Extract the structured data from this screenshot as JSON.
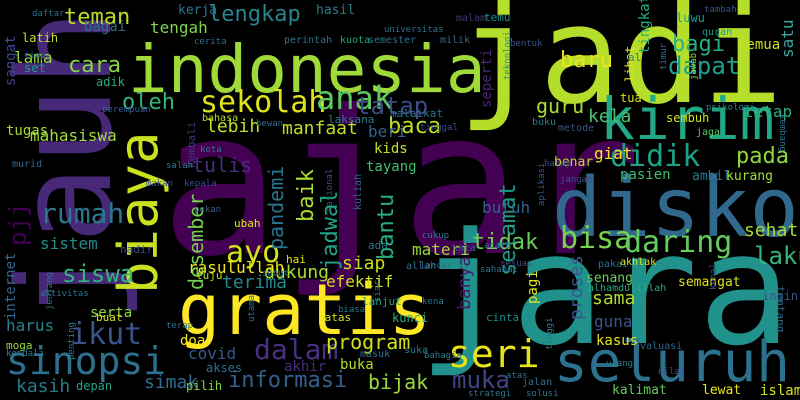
{
  "words": [
    {
      "text": "ajar",
      "color": "#440154"
    },
    {
      "text": "jarak",
      "color": "#21918c"
    },
    {
      "text": "jadi",
      "color": "#b5de2b"
    },
    {
      "text": "jauh",
      "color": "#482878"
    },
    {
      "text": "indonesia",
      "color": "#a0da39"
    },
    {
      "text": "diskon",
      "color": "#31688e"
    },
    {
      "text": "gratis",
      "color": "#fde725"
    },
    {
      "text": "kirim",
      "color": "#22a884"
    },
    {
      "text": "seluruh",
      "color": "#2c728e"
    },
    {
      "text": "biaya",
      "color": "#cae11f"
    },
    {
      "text": "sinopsi",
      "color": "#2d708e"
    },
    {
      "text": "sekolah",
      "color": "#dde318"
    },
    {
      "text": "anak",
      "color": "#5ec962"
    },
    {
      "text": "didik",
      "color": "#1fa187"
    },
    {
      "text": "seri",
      "color": "#e5e419"
    },
    {
      "text": "dalam",
      "color": "#46327e"
    },
    {
      "text": "informasi",
      "color": "#355f8d"
    },
    {
      "text": "ikut",
      "color": "#3b528b"
    },
    {
      "text": "ayo",
      "color": "#d8e219"
    },
    {
      "text": "tidak",
      "color": "#6ece58"
    },
    {
      "text": "bisa",
      "color": "#7ad151"
    },
    {
      "text": "daring",
      "color": "#65cb5e"
    },
    {
      "text": "rumah",
      "color": "#2a788e"
    },
    {
      "text": "lengkap",
      "color": "#25848e"
    },
    {
      "text": "baca",
      "color": "#c2df23"
    },
    {
      "text": "teman",
      "color": "#bade28"
    },
    {
      "text": "siswa",
      "color": "#32b67a"
    },
    {
      "text": "muka",
      "color": "#414487"
    },
    {
      "text": "bagi",
      "color": "#29af7f"
    },
    {
      "text": "dapat",
      "color": "#1f9e89"
    },
    {
      "text": "laku",
      "color": "#35b779"
    },
    {
      "text": "baru",
      "color": "#eae51a"
    },
    {
      "text": "oleh",
      "color": "#31b57b"
    },
    {
      "text": "cara",
      "color": "#86d549"
    },
    {
      "text": "guru",
      "color": "#aadc32"
    },
    {
      "text": "tatap",
      "color": "#3e4a89"
    },
    {
      "text": "pada",
      "color": "#92d742"
    },
    {
      "text": "program",
      "color": "#d2e21b"
    },
    {
      "text": "bijak",
      "color": "#9bd93c"
    },
    {
      "text": "selamat",
      "color": "#1e9b8a"
    },
    {
      "text": "bantu",
      "color": "#28ae80"
    },
    {
      "text": "jadwal",
      "color": "#20a486"
    },
    {
      "text": "desember",
      "color": "#75d054"
    },
    {
      "text": "baik",
      "color": "#a8db34"
    },
    {
      "text": "pandemi",
      "color": "#2b748e"
    },
    {
      "text": "terima",
      "color": "#24878e"
    },
    {
      "text": "dukung",
      "color": "#addc30"
    },
    {
      "text": "rasulullah",
      "color": "#f1e51d"
    },
    {
      "text": "manfaat",
      "color": "#c0df25"
    },
    {
      "text": "lebih",
      "color": "#bddf26"
    },
    {
      "text": "tulis",
      "color": "#472f7d"
    },
    {
      "text": "siap",
      "color": "#c8e020"
    },
    {
      "text": "simak",
      "color": "#2e6e8e"
    },
    {
      "text": "covid",
      "color": "#38598c"
    },
    {
      "text": "kasih",
      "color": "#287c8e"
    },
    {
      "text": "harus",
      "color": "#26828e"
    },
    {
      "text": "serta",
      "color": "#8ed645"
    },
    {
      "text": "lama",
      "color": "#93d741"
    },
    {
      "text": "bagai",
      "color": "#2e6f8e"
    },
    {
      "text": "tengah",
      "color": "#7fd34e"
    },
    {
      "text": "mahasiswa",
      "color": "#a2da37"
    },
    {
      "text": "sistem",
      "color": "#228c8d"
    },
    {
      "text": "pjj",
      "color": "#440154"
    },
    {
      "text": "sangat",
      "color": "#3f4788"
    },
    {
      "text": "internet",
      "color": "#31668e"
    },
    {
      "text": "efektif",
      "color": "#d0e11c"
    },
    {
      "text": "banyak",
      "color": "#481a6c"
    },
    {
      "text": "proses",
      "color": "#39558c"
    },
    {
      "text": "sama",
      "color": "#addc30"
    },
    {
      "text": "guna",
      "color": "#3b528b"
    },
    {
      "text": "kasus",
      "color": "#e2e418"
    },
    {
      "text": "sehat",
      "color": "#aadc32"
    },
    {
      "text": "tetap",
      "color": "#2db27d"
    },
    {
      "text": "satu",
      "color": "#3ba99f"
    },
    {
      "text": "semua",
      "color": "#cde11d"
    },
    {
      "text": "semangat",
      "color": "#dde318"
    },
    {
      "text": "butuh",
      "color": "#34618d"
    },
    {
      "text": "kela",
      "color": "#4ac16d"
    },
    {
      "text": "beri",
      "color": "#33638d"
    },
    {
      "text": "giat",
      "color": "#f8e621"
    },
    {
      "text": "materi",
      "color": "#9fda3a"
    },
    {
      "text": "kerja",
      "color": "#2a768e"
    },
    {
      "text": "hasil",
      "color": "#287d8e"
    },
    {
      "text": "tingkat",
      "color": "#26ad81"
    },
    {
      "text": "seperti",
      "color": "#482576"
    },
    {
      "text": "kids",
      "color": "#c5e021"
    },
    {
      "text": "tayang",
      "color": "#42be71"
    },
    {
      "text": "tugas",
      "color": "#a5db36"
    },
    {
      "text": "latih",
      "color": "#c2df23"
    },
    {
      "text": "buka",
      "color": "#b2dd2d"
    },
    {
      "text": "akhir",
      "color": "#472d7b"
    },
    {
      "text": "akses",
      "color": "#2d708e"
    },
    {
      "text": "pilih",
      "color": "#7fd34e"
    },
    {
      "text": "depan",
      "color": "#20a386"
    },
    {
      "text": "doa",
      "color": "#f4e61e"
    },
    {
      "text": "moga",
      "color": "#95d840"
    },
    {
      "text": "set",
      "color": "#1f9a8a"
    },
    {
      "text": "adik",
      "color": "#25ac82"
    },
    {
      "text": "kunci",
      "color": "#30b07e"
    },
    {
      "text": "senang",
      "color": "#6ccd5a"
    },
    {
      "text": "benar",
      "color": "#b8de29"
    },
    {
      "text": "pasien",
      "color": "#3fbc73"
    },
    {
      "text": "ambil",
      "color": "#2a788e"
    },
    {
      "text": "kurang",
      "color": "#a5db36"
    },
    {
      "text": "lewat",
      "color": "#e7e419"
    },
    {
      "text": "kalimat",
      "color": "#65cb5e"
    },
    {
      "text": "islam",
      "color": "#d5e21a"
    },
    {
      "text": "ingin",
      "color": "#3b528b"
    },
    {
      "text": "tentang",
      "color": "#2d708e"
    },
    {
      "text": "lihat",
      "color": "#e5e419"
    },
    {
      "text": "sembuh",
      "color": "#d2e21b"
    },
    {
      "text": "tua",
      "color": "#dde318"
    },
    {
      "text": "luwu",
      "color": "#1f998a"
    },
    {
      "text": "temu",
      "color": "#21918c"
    },
    {
      "text": "cinta",
      "color": "#23898e"
    },
    {
      "text": "lanjut",
      "color": "#20a386"
    },
    {
      "text": "hadir",
      "color": "#3b528b"
    },
    {
      "text": "kata",
      "color": "#355f8d"
    },
    {
      "text": "buat",
      "color": "#d0e11c"
    },
    {
      "text": "tuju",
      "color": "#b5de2b"
    },
    {
      "text": "hai",
      "color": "#e5e419"
    },
    {
      "text": "ubah",
      "color": "#e2e418"
    },
    {
      "text": "ada",
      "color": "#2a788e"
    },
    {
      "text": "batas",
      "color": "#d8e219"
    },
    {
      "text": "bahasa",
      "color": "#b2dd2d"
    },
    {
      "text": "laksana",
      "color": "#287c8e"
    },
    {
      "text": "malaikat",
      "color": "#2a768e"
    },
    {
      "text": "kuota",
      "color": "#1fa088"
    },
    {
      "text": "semester",
      "color": "#2d708e"
    },
    {
      "text": "milik",
      "color": "#31688e"
    },
    {
      "text": "perintah",
      "color": "#2c728e"
    },
    {
      "text": "universitas",
      "color": "#2c728e"
    },
    {
      "text": "malam",
      "color": "#46337f"
    },
    {
      "text": "quran",
      "color": "#1f958b"
    },
    {
      "text": "jawab",
      "color": "#95d840"
    },
    {
      "text": "tambah",
      "color": "#3b528b"
    },
    {
      "text": "al",
      "color": "#2a788e"
    },
    {
      "text": "cerita",
      "color": "#2c728e"
    },
    {
      "text": "tiap",
      "color": "#34618d"
    },
    {
      "text": "daftar",
      "color": "#2e6e8e"
    },
    {
      "text": "bentuk",
      "color": "#3b528b"
    },
    {
      "text": "teknologi",
      "color": "#1f968b"
    },
    {
      "text": "timur",
      "color": "#2c728e"
    },
    {
      "text": "jaga",
      "color": "#5ec962"
    },
    {
      "text": "psikologi",
      "color": "#23898e"
    },
    {
      "text": "kembang",
      "color": "#2a768e"
    },
    {
      "text": "metode",
      "color": "#3b528b"
    },
    {
      "text": "hewan",
      "color": "#2d708e"
    },
    {
      "text": "tinggal",
      "color": "#3b528b"
    },
    {
      "text": "perempuan",
      "color": "#355f8d"
    },
    {
      "text": "kembali",
      "color": "#46327e"
    },
    {
      "text": "buku",
      "color": "#2a788e"
    },
    {
      "text": "kota",
      "color": "#2a788e"
    },
    {
      "text": "murid",
      "color": "#32648e"
    },
    {
      "text": "kepala",
      "color": "#3e4a89"
    },
    {
      "text": "makan",
      "color": "#3b528b"
    },
    {
      "text": "pekan",
      "color": "#355f8d"
    },
    {
      "text": "salah",
      "color": "#2a788e"
    },
    {
      "text": "nasional",
      "color": "#3b528b"
    },
    {
      "text": "kuliah",
      "color": "#31688e"
    },
    {
      "text": "aplikasi",
      "color": "#3b528b"
    },
    {
      "text": "harap",
      "color": "#3b528b"
    },
    {
      "text": "jangan",
      "color": "#3b528b"
    },
    {
      "text": "pakai",
      "color": "#2d708e"
    },
    {
      "text": "akhlak",
      "color": "#dde318"
    },
    {
      "text": "sahabat",
      "color": "#2a788e"
    },
    {
      "text": "sesuai",
      "color": "#3e4a89"
    },
    {
      "text": "allah",
      "color": "#2c728e"
    },
    {
      "text": "lancar",
      "color": "#31688e"
    },
    {
      "text": "cukup",
      "color": "#2a788e"
    },
    {
      "text": "acara",
      "color": "#2e6e8e"
    },
    {
      "text": "kenal",
      "color": "#3b528b"
    },
    {
      "text": "alhamdulillah",
      "color": "#26ad81"
    },
    {
      "text": "sebut",
      "color": "#2c728e"
    },
    {
      "text": "siar",
      "color": "#2a788e"
    },
    {
      "text": "biasa",
      "color": "#2a788e"
    },
    {
      "text": "utama",
      "color": "#2c728e"
    },
    {
      "text": "masuk",
      "color": "#2d708e"
    },
    {
      "text": "suka",
      "color": "#2a788e"
    },
    {
      "text": "bahagia",
      "color": "#2a788e"
    },
    {
      "text": "kena",
      "color": "#2a788e"
    },
    {
      "text": "tinggi",
      "color": "#2c728e"
    },
    {
      "text": "terap",
      "color": "#2c728e"
    },
    {
      "text": "penting",
      "color": "#2a788e"
    },
    {
      "text": "aktivitas",
      "color": "#2a788e"
    },
    {
      "text": "kendala",
      "color": "#2a788e"
    },
    {
      "text": "jenjang",
      "color": "#2c728e"
    },
    {
      "text": "pagi",
      "color": "#dde318"
    },
    {
      "text": "solusi",
      "color": "#2a788e"
    },
    {
      "text": "atas",
      "color": "#2c728e"
    },
    {
      "text": "strategi",
      "color": "#2c728e"
    },
    {
      "text": "evaluasi",
      "color": "#31688e"
    },
    {
      "text": "jalan",
      "color": "#2c728e"
    },
    {
      "text": "nilai",
      "color": "#3b528b"
    },
    {
      "text": "ulang",
      "color": "#2a788e"
    }
  ]
}
